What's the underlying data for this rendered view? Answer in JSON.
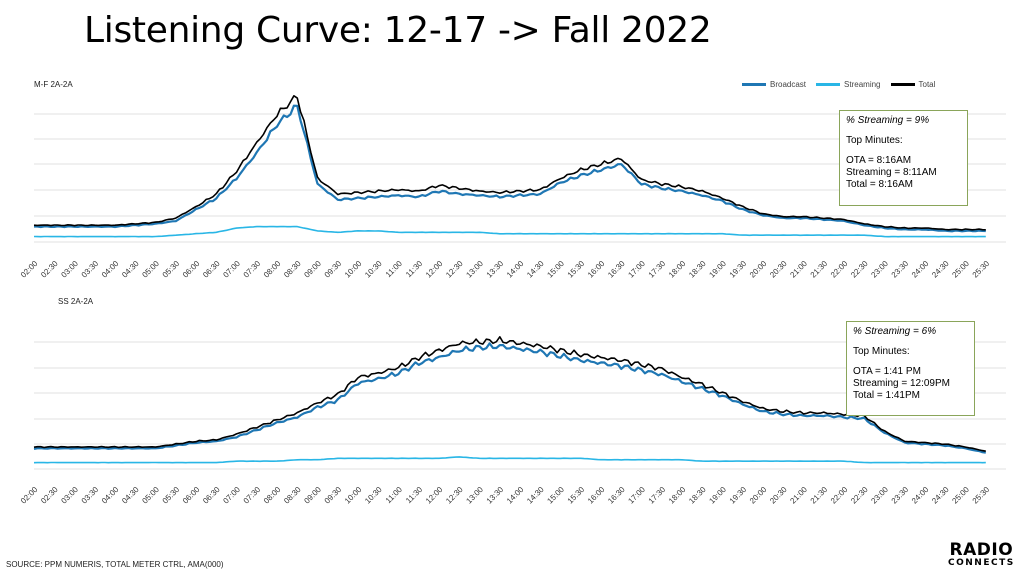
{
  "title": "Listening Curve: 12-17 -> Fall 2022",
  "legend": {
    "broadcast": "Broadcast",
    "streaming": "Streaming",
    "total": "Total"
  },
  "colors": {
    "broadcast": "#1f77b4",
    "streaming": "#29b6e6",
    "total": "#000000",
    "grid": "#d9d9d9",
    "box_border": "#8aa55a"
  },
  "source": "SOURCE: PPM NUMERIS, TOTAL METER CTRL, AMA(000)",
  "logo": {
    "line1": "RADIO",
    "line2": "CONNECTS"
  },
  "panels": [
    {
      "label": "M-F 2A-2A",
      "box": {
        "pct": "% Streaming = 9%",
        "head": "Top Minutes:",
        "ota": "OTA = 8:16AM",
        "streaming": "Streaming = 8:11AM",
        "total": "Total = 8:16AM"
      }
    },
    {
      "label": "SS 2A-2A",
      "box": {
        "pct": "% Streaming = 6%",
        "head": "Top Minutes:",
        "ota": "OTA = 1:41 PM",
        "streaming": "Streaming = 12:09PM",
        "total": "Total = 1:41PM"
      }
    }
  ],
  "chart_data": [
    {
      "type": "line",
      "title": "M-F 2A-2A",
      "categories": [
        "02:00",
        "02:30",
        "03:00",
        "03:30",
        "04:00",
        "04:30",
        "05:00",
        "05:30",
        "06:00",
        "06:30",
        "07:00",
        "07:30",
        "08:00",
        "08:30",
        "09:00",
        "09:30",
        "10:00",
        "10:30",
        "11:00",
        "11:30",
        "12:00",
        "12:30",
        "13:00",
        "13:30",
        "14:00",
        "14:30",
        "15:00",
        "15:30",
        "16:00",
        "16:30",
        "17:00",
        "17:30",
        "18:00",
        "18:30",
        "19:00",
        "19:30",
        "20:00",
        "20:30",
        "21:00",
        "21:30",
        "22:00",
        "22:30",
        "23:00",
        "23:30",
        "24:00",
        "24:30",
        "25:00",
        "25:30"
      ],
      "ylim": [
        0,
        100
      ],
      "grid": true,
      "legend": "top-right",
      "series": [
        {
          "name": "Broadcast",
          "values": [
            8,
            8,
            8,
            8,
            8,
            9,
            10,
            12,
            20,
            28,
            42,
            60,
            80,
            93,
            38,
            27,
            28,
            29,
            30,
            29,
            33,
            31,
            30,
            29,
            30,
            31,
            39,
            44,
            48,
            52,
            38,
            35,
            33,
            30,
            26,
            20,
            16,
            14,
            14,
            13,
            12,
            9,
            7,
            6,
            6,
            5,
            5,
            5
          ]
        },
        {
          "name": "Streaming",
          "values": [
            1,
            1,
            1,
            1,
            1,
            1,
            1,
            2,
            3,
            4,
            7,
            8,
            8,
            8,
            5,
            4,
            5,
            5,
            4,
            4,
            4,
            4,
            4,
            3,
            3,
            3,
            3,
            3,
            3,
            3,
            3,
            3,
            3,
            3,
            3,
            2,
            2,
            2,
            2,
            2,
            2,
            2,
            1,
            1,
            1,
            1,
            1,
            1
          ]
        },
        {
          "name": "Total",
          "values": [
            9,
            9,
            9,
            9,
            9,
            10,
            11,
            14,
            22,
            31,
            47,
            67,
            87,
            100,
            42,
            31,
            32,
            33,
            34,
            33,
            37,
            35,
            33,
            32,
            33,
            34,
            42,
            48,
            52,
            56,
            41,
            38,
            36,
            33,
            28,
            22,
            17,
            15,
            15,
            14,
            13,
            10,
            8,
            7,
            7,
            6,
            6,
            6
          ]
        }
      ]
    },
    {
      "type": "line",
      "title": "SS 2A-2A",
      "categories": [
        "02:00",
        "02:30",
        "03:00",
        "03:30",
        "04:00",
        "04:30",
        "05:00",
        "05:30",
        "06:00",
        "06:30",
        "07:00",
        "07:30",
        "08:00",
        "08:30",
        "09:00",
        "09:30",
        "10:00",
        "10:30",
        "11:00",
        "11:30",
        "12:00",
        "12:30",
        "13:00",
        "13:30",
        "14:00",
        "14:30",
        "15:00",
        "15:30",
        "16:00",
        "16:30",
        "17:00",
        "17:30",
        "18:00",
        "18:30",
        "19:00",
        "19:30",
        "20:00",
        "20:30",
        "21:00",
        "21:30",
        "22:00",
        "22:30",
        "23:00",
        "23:30",
        "24:00",
        "24:30",
        "25:00",
        "25:30"
      ],
      "ylim": [
        0,
        100
      ],
      "grid": true,
      "legend": "none",
      "series": [
        {
          "name": "Broadcast",
          "values": [
            11,
            11,
            11,
            11,
            11,
            11,
            11,
            13,
            15,
            16,
            19,
            24,
            29,
            33,
            40,
            45,
            57,
            60,
            64,
            71,
            75,
            80,
            82,
            83,
            81,
            79,
            76,
            73,
            71,
            69,
            66,
            63,
            58,
            53,
            48,
            42,
            37,
            35,
            34,
            34,
            33,
            32,
            22,
            15,
            14,
            13,
            11,
            8
          ]
        },
        {
          "name": "Streaming",
          "values": [
            1,
            1,
            1,
            1,
            1,
            1,
            1,
            1,
            1,
            1,
            2,
            2,
            2,
            3,
            3,
            4,
            4,
            4,
            4,
            4,
            4,
            5,
            4,
            4,
            4,
            4,
            4,
            4,
            3,
            3,
            3,
            3,
            3,
            2,
            2,
            2,
            2,
            2,
            2,
            2,
            2,
            1,
            1,
            1,
            1,
            1,
            1,
            1
          ]
        },
        {
          "name": "Total",
          "values": [
            12,
            12,
            12,
            12,
            12,
            12,
            12,
            14,
            16,
            17,
            21,
            26,
            31,
            36,
            43,
            49,
            61,
            64,
            68,
            75,
            80,
            85,
            86,
            87,
            85,
            83,
            80,
            77,
            75,
            73,
            70,
            67,
            61,
            56,
            50,
            44,
            39,
            37,
            36,
            36,
            35,
            34,
            23,
            16,
            15,
            14,
            12,
            9
          ]
        }
      ]
    }
  ]
}
